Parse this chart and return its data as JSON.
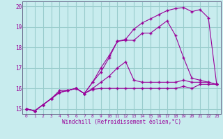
{
  "xlabel": "Windchill (Refroidissement éolien,°C)",
  "bg_color": "#c8ecee",
  "line_color": "#990099",
  "grid_color": "#99cccc",
  "xlim": [
    -0.5,
    23.5
  ],
  "ylim": [
    14.75,
    20.25
  ],
  "xticks": [
    0,
    1,
    2,
    3,
    4,
    5,
    6,
    7,
    8,
    9,
    10,
    11,
    12,
    13,
    14,
    15,
    16,
    17,
    18,
    19,
    20,
    21,
    22,
    23
  ],
  "yticks": [
    15,
    16,
    17,
    18,
    19,
    20
  ],
  "line1_x": [
    0,
    1,
    2,
    3,
    4,
    5,
    6,
    7,
    8,
    9,
    10,
    11,
    12,
    13,
    14,
    15,
    16,
    17,
    18,
    19,
    20,
    21,
    22,
    23
  ],
  "line1_y": [
    15.0,
    14.9,
    15.2,
    15.5,
    15.9,
    15.9,
    16.0,
    15.75,
    15.95,
    16.0,
    16.0,
    16.0,
    16.0,
    16.0,
    16.0,
    16.0,
    16.0,
    16.0,
    16.0,
    16.1,
    16.0,
    16.2,
    16.2,
    16.2
  ],
  "line2_x": [
    0,
    1,
    2,
    3,
    4,
    5,
    6,
    7,
    8,
    9,
    10,
    11,
    12,
    13,
    14,
    15,
    16,
    17,
    18,
    19,
    20,
    21,
    22,
    23
  ],
  "line2_y": [
    15.0,
    14.9,
    15.2,
    15.5,
    15.8,
    15.9,
    16.0,
    15.75,
    16.0,
    16.3,
    16.6,
    17.0,
    17.3,
    16.4,
    16.3,
    16.3,
    16.3,
    16.3,
    16.3,
    16.4,
    16.3,
    16.3,
    16.3,
    16.2
  ],
  "line3_x": [
    0,
    1,
    2,
    3,
    4,
    5,
    6,
    7,
    8,
    9,
    10,
    11,
    12,
    13,
    14,
    15,
    16,
    17,
    18,
    19,
    20,
    21,
    22,
    23
  ],
  "line3_y": [
    15.0,
    14.9,
    15.2,
    15.5,
    15.8,
    15.9,
    16.0,
    15.75,
    16.3,
    16.8,
    17.5,
    18.3,
    18.35,
    18.35,
    18.7,
    18.7,
    19.0,
    19.3,
    18.6,
    17.5,
    16.5,
    16.4,
    16.3,
    16.2
  ],
  "line4_x": [
    0,
    1,
    2,
    3,
    4,
    5,
    6,
    7,
    8,
    9,
    10,
    11,
    12,
    13,
    14,
    15,
    16,
    17,
    18,
    19,
    20,
    21,
    22,
    23
  ],
  "line4_y": [
    15.0,
    14.9,
    15.2,
    15.5,
    15.8,
    15.9,
    16.0,
    15.75,
    16.3,
    17.0,
    17.6,
    18.3,
    18.4,
    18.9,
    19.2,
    19.4,
    19.6,
    19.8,
    19.9,
    19.95,
    19.75,
    19.85,
    19.45,
    16.2
  ]
}
